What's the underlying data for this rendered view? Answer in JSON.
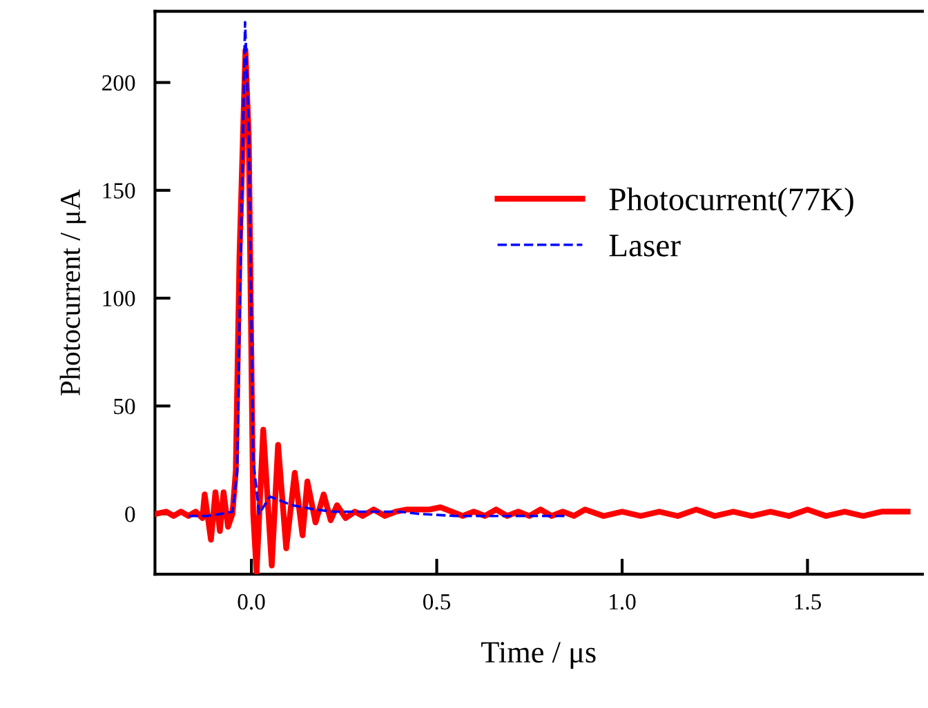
{
  "chart_data": {
    "type": "line",
    "xlabel": "Time / μs",
    "ylabel": "Photocurrent / μA",
    "xlim": [
      -0.26,
      1.81
    ],
    "ylim": [
      -28,
      233
    ],
    "xticks": [
      {
        "value": 0,
        "label": "0.0"
      },
      0.5,
      {
        "value": 1,
        "label": "1.0"
      },
      1.5
    ],
    "yticks": [
      0,
      50,
      100,
      150,
      200
    ],
    "grid": false,
    "legend": "right",
    "marker": "none",
    "series": [
      {
        "name": "Photocurrent(77K)",
        "color": "#ff0000",
        "line_style": "solid",
        "x": [
          -0.257,
          -0.23,
          -0.21,
          -0.19,
          -0.17,
          -0.15,
          -0.132,
          -0.126,
          -0.109,
          -0.097,
          -0.085,
          -0.075,
          -0.063,
          -0.051,
          -0.042,
          -0.032,
          -0.016,
          -0.007,
          0.005,
          0.014,
          0.032,
          0.055,
          0.072,
          0.094,
          0.117,
          0.138,
          0.151,
          0.173,
          0.195,
          0.214,
          0.231,
          0.254,
          0.279,
          0.3,
          0.33,
          0.36,
          0.39,
          0.42,
          0.45,
          0.48,
          0.51,
          0.54,
          0.57,
          0.6,
          0.63,
          0.66,
          0.69,
          0.72,
          0.75,
          0.78,
          0.81,
          0.84,
          0.87,
          0.9,
          0.95,
          1.0,
          1.05,
          1.1,
          1.15,
          1.2,
          1.25,
          1.3,
          1.35,
          1.4,
          1.45,
          1.5,
          1.55,
          1.6,
          1.65,
          1.7,
          1.77
        ],
        "values": [
          0,
          1,
          -1,
          1,
          -1,
          1,
          -2,
          9,
          -12,
          10,
          -8,
          10,
          -6,
          0,
          20,
          120,
          215,
          174,
          0,
          -27,
          39,
          -24,
          32,
          -16,
          19,
          -10,
          15,
          -4,
          9,
          -3,
          4,
          -2,
          1,
          -1,
          2,
          -1,
          1,
          2,
          2,
          2,
          3,
          1,
          -1,
          1,
          -1,
          2,
          -1,
          1,
          -1,
          2,
          -1,
          1,
          -1,
          2,
          -1,
          1,
          -1,
          1,
          -1,
          2,
          -1,
          1,
          -1,
          1,
          -1,
          2,
          -1,
          1,
          -1,
          1,
          1
        ]
      },
      {
        "name": "Laser",
        "color": "#0000ff",
        "line_style": "dashed",
        "x": [
          -0.169,
          -0.12,
          -0.08,
          -0.051,
          -0.038,
          -0.032,
          -0.017,
          -0.007,
          0.005,
          0.021,
          0.05,
          0.08,
          0.109,
          0.14,
          0.172,
          0.22,
          0.3,
          0.4,
          0.45,
          0.55,
          0.65,
          0.75,
          0.847
        ],
        "values": [
          -1,
          -1,
          0,
          1,
          20,
          89,
          228,
          180,
          25,
          0,
          8,
          6,
          4,
          3,
          2,
          1,
          1,
          1,
          0,
          -1,
          -1,
          -1,
          -1
        ]
      }
    ]
  }
}
